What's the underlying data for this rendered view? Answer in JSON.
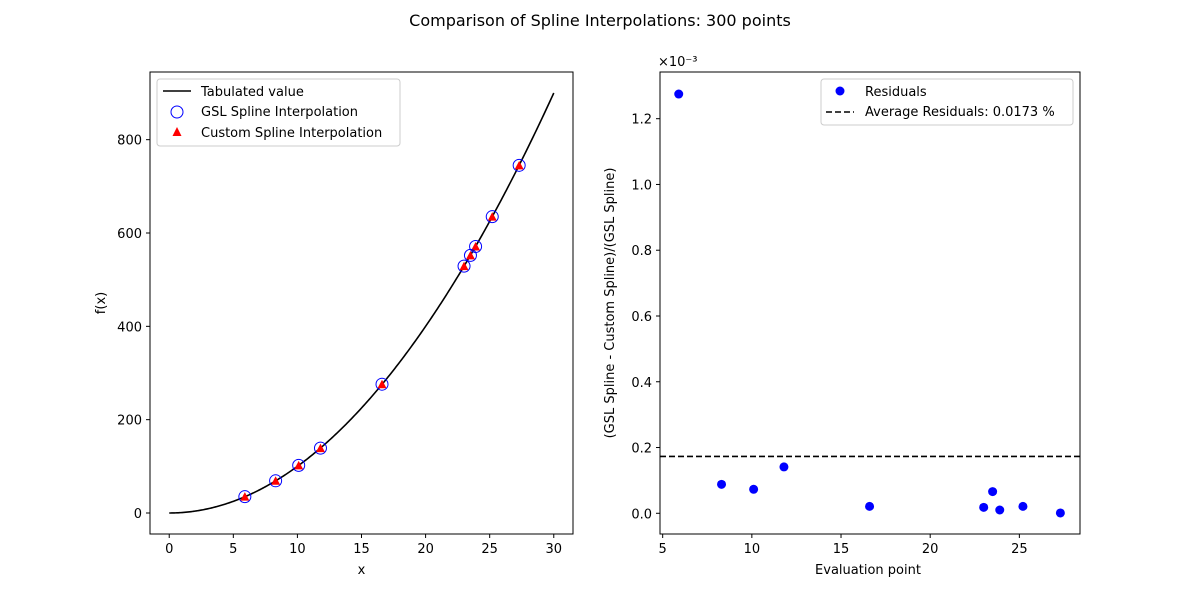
{
  "figure": {
    "title": "Comparison of Spline Interpolations: 300 points"
  },
  "chart_data": [
    {
      "type": "line",
      "xlabel": "x",
      "ylabel": "f(x)",
      "xlim": [
        -1.5,
        31.5
      ],
      "ylim": [
        -45,
        945
      ],
      "xticks": [
        0,
        5,
        10,
        15,
        20,
        25,
        30
      ],
      "yticks": [
        0,
        200,
        400,
        600,
        800
      ],
      "grid": false,
      "legend_position": "upper-left",
      "curve": {
        "name": "Tabulated value",
        "function": "x^2",
        "x_range": [
          0,
          30
        ],
        "color": "#000000"
      },
      "series": [
        {
          "name": "GSL Spline Interpolation",
          "marker": "open-circle",
          "color": "#0000ff",
          "x": [
            5.9,
            8.3,
            10.1,
            11.8,
            16.6,
            23.0,
            23.5,
            23.9,
            25.2,
            27.3
          ],
          "y": [
            35,
            69,
            102,
            139,
            276,
            529,
            552,
            571,
            635,
            745
          ]
        },
        {
          "name": "Custom Spline Interpolation",
          "marker": "filled-triangle",
          "color": "#ff0000",
          "x": [
            5.9,
            8.3,
            10.1,
            11.8,
            16.6,
            23.0,
            23.5,
            23.9,
            25.2,
            27.3
          ],
          "y": [
            35,
            69,
            102,
            139,
            276,
            529,
            552,
            571,
            635,
            745
          ]
        }
      ]
    },
    {
      "type": "scatter",
      "xlabel": "Evaluation point",
      "ylabel": "(GSL Spline -  Custom Spline)/(GSL Spline)",
      "offset_text": "×10⁻³",
      "scale": 0.001,
      "xlim": [
        4.85,
        28.4
      ],
      "ylim": [
        -6.3e-05,
        0.001342
      ],
      "xticks": [
        5,
        10,
        15,
        20,
        25
      ],
      "yticks": [
        0.0,
        0.2,
        0.4,
        0.6,
        0.8,
        1.0,
        1.2
      ],
      "ytick_labels": [
        "0.0",
        "0.2",
        "0.4",
        "0.6",
        "0.8",
        "1.0",
        "1.2"
      ],
      "grid": false,
      "legend_position": "upper-right",
      "series": [
        {
          "name": "Residuals",
          "marker": "filled-circle",
          "color": "#0000ff",
          "x": [
            5.9,
            8.3,
            10.1,
            11.8,
            16.6,
            23.0,
            23.5,
            23.9,
            25.2,
            27.3
          ],
          "y": [
            0.001275,
            8.8e-05,
            7.3e-05,
            0.000141,
            2.1e-05,
            1.8e-05,
            6.6e-05,
            1e-05,
            2.1e-05,
            1e-06
          ]
        }
      ],
      "reference_line": {
        "name": "Average Residuals: 0.0173 %",
        "style": "dashed",
        "color": "#000000",
        "y": 0.000173
      }
    }
  ]
}
